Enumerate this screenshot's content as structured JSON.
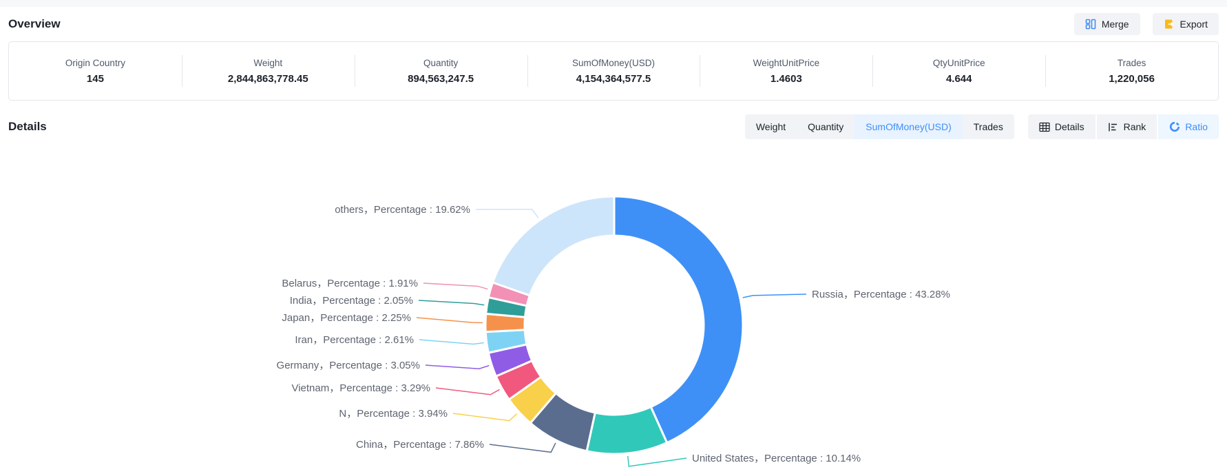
{
  "page": {
    "title": "Overview",
    "details_title": "Details"
  },
  "toolbar": {
    "merge_label": "Merge",
    "export_label": "Export"
  },
  "stats": [
    {
      "label": "Origin Country",
      "value": "145"
    },
    {
      "label": "Weight",
      "value": "2,844,863,778.45"
    },
    {
      "label": "Quantity",
      "value": "894,563,247.5"
    },
    {
      "label": "SumOfMoney(USD)",
      "value": "4,154,364,577.5"
    },
    {
      "label": "WeightUnitPrice",
      "value": "1.4603"
    },
    {
      "label": "QtyUnitPrice",
      "value": "4.644"
    },
    {
      "label": "Trades",
      "value": "1,220,056"
    }
  ],
  "tabs": {
    "metric_tabs": [
      {
        "label": "Weight",
        "active": false
      },
      {
        "label": "Quantity",
        "active": false
      },
      {
        "label": "SumOfMoney(USD)",
        "active": true
      },
      {
        "label": "Trades",
        "active": false
      }
    ],
    "view_tabs": [
      {
        "label": "Details",
        "icon": "table-icon",
        "active": false
      },
      {
        "label": "Rank",
        "icon": "rank-icon",
        "active": false
      },
      {
        "label": "Ratio",
        "icon": "donut-icon",
        "active": true
      }
    ]
  },
  "colors": {
    "accent": "#3e8ef7",
    "active_tab_bg": "#e8f3ff",
    "tab_bg": "#f2f3f6",
    "merge_icon": "#3e8ef7",
    "export_icon": "#f7ba1e"
  },
  "chart_data": {
    "type": "pie",
    "title": "",
    "donut": true,
    "label_format": "{name}，Percentage : {value}%",
    "series": [
      {
        "name": "Russia",
        "value": 43.28,
        "color": "#3e90f7"
      },
      {
        "name": "United States",
        "value": 10.14,
        "color": "#30c9b9"
      },
      {
        "name": "China",
        "value": 7.86,
        "color": "#5a6d8f"
      },
      {
        "name": "N",
        "value": 3.94,
        "color": "#f8d04a"
      },
      {
        "name": "Vietnam",
        "value": 3.29,
        "color": "#f1587d"
      },
      {
        "name": "Germany",
        "value": 3.05,
        "color": "#8f5ce6"
      },
      {
        "name": "Iran",
        "value": 2.61,
        "color": "#7ed3f4"
      },
      {
        "name": "Japan",
        "value": 2.25,
        "color": "#f6914c"
      },
      {
        "name": "India",
        "value": 2.05,
        "color": "#2f9e99"
      },
      {
        "name": "Belarus",
        "value": 1.91,
        "color": "#f290b5"
      },
      {
        "name": "others",
        "value": 19.62,
        "color": "#cde5fb"
      }
    ]
  }
}
